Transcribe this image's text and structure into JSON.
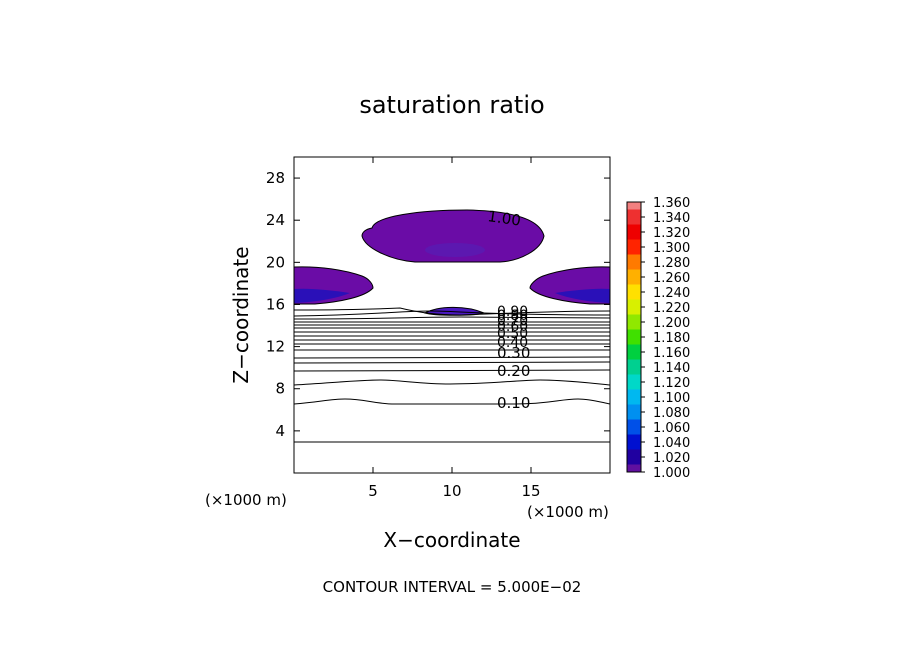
{
  "chart_data": {
    "type": "contour",
    "title": "saturation ratio",
    "xlabel": "X−coordinate",
    "ylabel": "Z−coordinate",
    "x_unit": "(×1000 m)",
    "z_unit": "(×1000 m)",
    "xlim": [
      0,
      20
    ],
    "ylim": [
      0,
      30
    ],
    "x_ticks": [
      5,
      10,
      15
    ],
    "y_ticks": [
      4,
      8,
      12,
      16,
      20,
      24,
      28
    ],
    "footer": "CONTOUR INTERVAL = 5.000E−02",
    "contour_interval": 0.05,
    "line_contours": [
      {
        "label": "0.10",
        "z_sides": 6.5,
        "z_center": 7.0
      },
      {
        "label": "0.20",
        "z_sides": 9.4,
        "z_center": 9.6
      },
      {
        "label": "0.30",
        "z_sides": 11.4,
        "z_center": 11.6
      }
    ],
    "unlabeled_contours": [
      3.0,
      8.1,
      10.3,
      10.8,
      12.0,
      12.5,
      12.9,
      13.3,
      13.7,
      14.1,
      14.4,
      14.7,
      15.0,
      15.3
    ],
    "crowded_labels": [
      "0.40",
      "0.50",
      "0.60",
      "0.70",
      "0.80",
      "0.90"
    ],
    "saturated_regions": [
      {
        "label": "1.00",
        "x": [
          6.0,
          15.5
        ],
        "z": [
          20.0,
          24.7
        ]
      },
      {
        "x": [
          0,
          5.0
        ],
        "z": [
          16.0,
          19.5
        ]
      },
      {
        "x": [
          15.0,
          20
        ],
        "z": [
          16.0,
          19.5
        ]
      },
      {
        "x": [
          8.5,
          11.5
        ],
        "z": [
          15.0,
          15.8
        ]
      }
    ],
    "colorbar": {
      "levels": [
        "1.360",
        "1.340",
        "1.320",
        "1.300",
        "1.280",
        "1.260",
        "1.240",
        "1.220",
        "1.200",
        "1.180",
        "1.160",
        "1.140",
        "1.120",
        "1.100",
        "1.080",
        "1.060",
        "1.040",
        "1.020",
        "1.000"
      ],
      "colors": [
        "#f28080",
        "#ee3030",
        "#ee0000",
        "#ff2400",
        "#ff7a00",
        "#ffb000",
        "#ffe000",
        "#d8f000",
        "#90e800",
        "#40e000",
        "#00d040",
        "#00d090",
        "#00d8c8",
        "#00b8f0",
        "#0090f0",
        "#0050e8",
        "#0010d0",
        "#2000a0",
        "#6010a0"
      ]
    }
  }
}
